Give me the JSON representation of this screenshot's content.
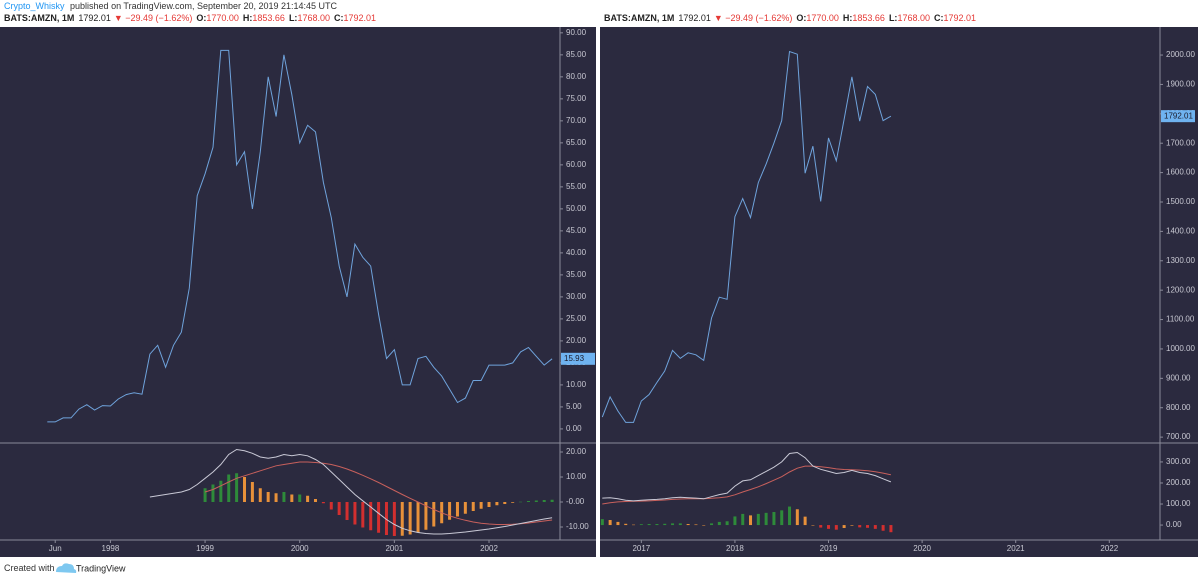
{
  "header": {
    "author": "Crypto_Whisky",
    "published": "published on TradingView.com, September 20, 2019 21:14:45 UTC"
  },
  "chart_data": [
    {
      "type": "line",
      "legend": {
        "symbol": "BATS:AMZN, 1M",
        "last": "1792.01",
        "change": "▼ −29.49 (−1.62%)",
        "ohlc": [
          {
            "label": "O:",
            "value": "1770.00"
          },
          {
            "label": "H:",
            "value": "1853.66"
          },
          {
            "label": "L:",
            "value": "1768.00"
          },
          {
            "label": "C:",
            "value": "1792.01"
          }
        ]
      },
      "xlim": [
        -6,
        65
      ],
      "xticks": [
        {
          "value": 1,
          "label": "Jun"
        },
        {
          "value": 8,
          "label": "1998"
        },
        {
          "value": 20,
          "label": "1999"
        },
        {
          "value": 32,
          "label": "2000"
        },
        {
          "value": 44,
          "label": "2001"
        },
        {
          "value": 56,
          "label": "2002"
        }
      ],
      "ylim": [
        -3.2,
        91.1
      ],
      "yticks": [
        {
          "value": 0,
          "label": "0.00"
        },
        {
          "value": 5,
          "label": "5.00"
        },
        {
          "value": 10,
          "label": "10.00"
        },
        {
          "value": 15,
          "label": "15.00"
        },
        {
          "value": 20,
          "label": "20.00"
        },
        {
          "value": 25,
          "label": "25.00"
        },
        {
          "value": 30,
          "label": "30.00"
        },
        {
          "value": 35,
          "label": "35.00"
        },
        {
          "value": 40,
          "label": "40.00"
        },
        {
          "value": 45,
          "label": "45.00"
        },
        {
          "value": 50,
          "label": "50.00"
        },
        {
          "value": 55,
          "label": "55.00"
        },
        {
          "value": 60,
          "label": "60.00"
        },
        {
          "value": 65,
          "label": "65.00"
        },
        {
          "value": 70,
          "label": "70.00"
        },
        {
          "value": 75,
          "label": "75.00"
        },
        {
          "value": 80,
          "label": "80.00"
        },
        {
          "value": 85,
          "label": "85.00"
        },
        {
          "value": 90,
          "label": "90.00"
        }
      ],
      "series": [
        {
          "color": "#6fa3dc",
          "values": [
            1.6,
            1.6,
            2.5,
            2.5,
            4.5,
            5.5,
            4.3,
            5.3,
            5.2,
            6.8,
            7.8,
            8.2,
            7.9,
            17,
            19,
            14,
            19,
            22,
            32,
            53,
            58,
            64,
            86,
            86,
            60,
            63,
            50,
            63,
            80,
            71,
            85,
            76,
            65,
            69,
            67.5,
            56,
            48,
            37,
            30,
            42,
            39,
            37,
            26,
            16,
            18,
            10,
            10,
            16,
            16.5,
            14,
            12,
            9,
            6,
            7,
            11,
            11,
            14.5,
            14.5,
            14.5,
            15,
            17.5,
            18.5,
            16.5,
            14.5,
            15.93
          ]
        }
      ],
      "indicator": {
        "ylim": [
          -15.2,
          23.6
        ],
        "yticks": [
          {
            "value": 20,
            "label": "20.00"
          },
          {
            "value": 10,
            "label": "10.00"
          },
          {
            "value": 0,
            "label": "-0.00"
          },
          {
            "value": -10,
            "label": "-10.00"
          }
        ],
        "line": {
          "color": "#c9c9d6",
          "values": [
            null,
            null,
            null,
            null,
            null,
            null,
            null,
            null,
            null,
            null,
            null,
            null,
            null,
            2,
            2.5,
            3,
            3.5,
            4,
            5,
            7,
            9.5,
            12,
            15,
            19,
            21,
            20.5,
            19.5,
            18,
            17.5,
            18,
            19,
            18.5,
            19,
            18.5,
            17,
            15,
            12,
            9,
            6,
            3,
            0.5,
            -2,
            -4.5,
            -7,
            -9,
            -10.5,
            -11.5,
            -12.2,
            -12.6,
            -12.8,
            -12.8,
            -12.6,
            -12.3,
            -12,
            -11.6,
            -11.2,
            -10.8,
            -10.3,
            -9.8,
            -9.2,
            -8.6,
            -8,
            -7.4,
            -6.8,
            -6.3
          ]
        },
        "signal": {
          "color": "#c8605c",
          "values": [
            null,
            null,
            null,
            null,
            null,
            null,
            null,
            null,
            null,
            null,
            null,
            null,
            null,
            null,
            null,
            null,
            null,
            null,
            null,
            null,
            4,
            5,
            6.5,
            8,
            9.5,
            10.5,
            11.5,
            12.5,
            13.5,
            14.5,
            15,
            15.5,
            16,
            16,
            15.8,
            15.5,
            15,
            14.2,
            13.2,
            12,
            10.7,
            9.3,
            7.8,
            6.2,
            4.6,
            3,
            1.5,
            0,
            -1.5,
            -3,
            -4.3,
            -5.5,
            -6.5,
            -7.3,
            -8,
            -8.5,
            -8.8,
            -9,
            -9,
            -8.9,
            -8.7,
            -8.4,
            -8,
            -7.6,
            -7.2
          ]
        },
        "histogram": {
          "colors": {
            "positive_rising": "#2e8b3a",
            "positive_falling": "#e8913a",
            "negative_falling": "#d32f2f",
            "negative_rising": "#e8913a"
          },
          "values": [
            null,
            null,
            null,
            null,
            null,
            null,
            null,
            null,
            null,
            null,
            null,
            null,
            null,
            null,
            null,
            null,
            null,
            null,
            null,
            null,
            5.5,
            7,
            8.5,
            11,
            11.5,
            10,
            8,
            5.5,
            4,
            3.5,
            4,
            3,
            3,
            2.5,
            1.2,
            -0.5,
            -3,
            -5.2,
            -7.2,
            -9,
            -10.2,
            -11.3,
            -12.3,
            -13.2,
            -13.6,
            -13.5,
            -13,
            -12.2,
            -11.1,
            -9.8,
            -8.5,
            -7.1,
            -5.8,
            -4.7,
            -3.6,
            -2.7,
            -2,
            -1.3,
            -0.8,
            -0.3,
            0.1,
            0.4,
            0.6,
            0.8,
            0.9
          ]
        }
      }
    },
    {
      "type": "line",
      "legend": {
        "symbol": "BATS:AMZN, 1M",
        "last": "1792.01",
        "change": "▼ −29.49 (−1.62%)",
        "ohlc": [
          {
            "label": "O:",
            "value": "1770.00"
          },
          {
            "label": "H:",
            "value": "1853.66"
          },
          {
            "label": "L:",
            "value": "1768.00"
          },
          {
            "label": "C:",
            "value": "1792.01"
          }
        ]
      },
      "xlim": [
        -0.3,
        71.5
      ],
      "xticks": [
        {
          "value": 5,
          "label": "2017"
        },
        {
          "value": 17,
          "label": "2018"
        },
        {
          "value": 29,
          "label": "2019"
        },
        {
          "value": 41,
          "label": "2020"
        },
        {
          "value": 53,
          "label": "2021"
        },
        {
          "value": 65,
          "label": "2022"
        }
      ],
      "ylim": [
        680,
        2092
      ],
      "yticks": [
        {
          "value": 700,
          "label": "700.00"
        },
        {
          "value": 800,
          "label": "800.00"
        },
        {
          "value": 900,
          "label": "900.00"
        },
        {
          "value": 1000,
          "label": "1000.00"
        },
        {
          "value": 1100,
          "label": "1100.00"
        },
        {
          "value": 1200,
          "label": "1200.00"
        },
        {
          "value": 1300,
          "label": "1300.00"
        },
        {
          "value": 1400,
          "label": "1400.00"
        },
        {
          "value": 1500,
          "label": "1500.00"
        },
        {
          "value": 1600,
          "label": "1600.00"
        },
        {
          "value": 1700,
          "label": "1700.00"
        },
        {
          "value": 1800,
          "label": "1800.00"
        },
        {
          "value": 1900,
          "label": "1900.00"
        },
        {
          "value": 2000,
          "label": "2000.00"
        }
      ],
      "series": [
        {
          "color": "#6fa3dc",
          "values": [
            768,
            837,
            789,
            750,
            750,
            823,
            845,
            886,
            925,
            995,
            968,
            987,
            980,
            961,
            1105,
            1176,
            1169,
            1450,
            1512,
            1447,
            1566,
            1629,
            1700,
            1777,
            2012,
            2003,
            1598,
            1690,
            1502,
            1718,
            1640,
            1781,
            1926,
            1775,
            1893,
            1866,
            1777,
            1792.01
          ]
        }
      ],
      "indicator": {
        "ylim": [
          -71,
          390
        ],
        "yticks": [
          {
            "value": 300,
            "label": "300.00"
          },
          {
            "value": 200,
            "label": "200.00"
          },
          {
            "value": 100,
            "label": "100.00"
          },
          {
            "value": 0,
            "label": "0.00"
          }
        ],
        "line": {
          "color": "#c9c9d6",
          "values": [
            128,
            130,
            125,
            118,
            115,
            118,
            120,
            122,
            125,
            130,
            132,
            130,
            128,
            125,
            135,
            145,
            152,
            185,
            210,
            215,
            235,
            255,
            275,
            300,
            340,
            345,
            320,
            280,
            265,
            255,
            245,
            250,
            260,
            250,
            245,
            235,
            220,
            205
          ]
        },
        "signal": {
          "color": "#c8605c",
          "values": [
            100,
            106,
            110,
            112,
            113,
            114,
            115,
            117,
            119,
            122,
            124,
            125,
            125,
            125,
            127,
            130,
            134,
            144,
            157,
            169,
            182,
            197,
            213,
            230,
            252,
            270,
            280,
            280,
            277,
            273,
            267,
            264,
            263,
            261,
            258,
            253,
            247,
            239
          ]
        },
        "histogram": {
          "colors": {
            "positive_rising": "#2e8b3a",
            "positive_falling": "#e8913a",
            "negative_falling": "#d32f2f",
            "negative_rising": "#e8913a"
          },
          "values": [
            28,
            24,
            15,
            6,
            2,
            4,
            5,
            5,
            6,
            8,
            8,
            5,
            3,
            0,
            8,
            15,
            18,
            41,
            53,
            46,
            53,
            58,
            62,
            70,
            88,
            75,
            40,
            0,
            -12,
            -18,
            -22,
            -14,
            -3,
            -11,
            -13,
            -18,
            -27,
            -34
          ]
        }
      }
    }
  ],
  "footer": {
    "created": "Created with",
    "brand": "TradingView"
  }
}
